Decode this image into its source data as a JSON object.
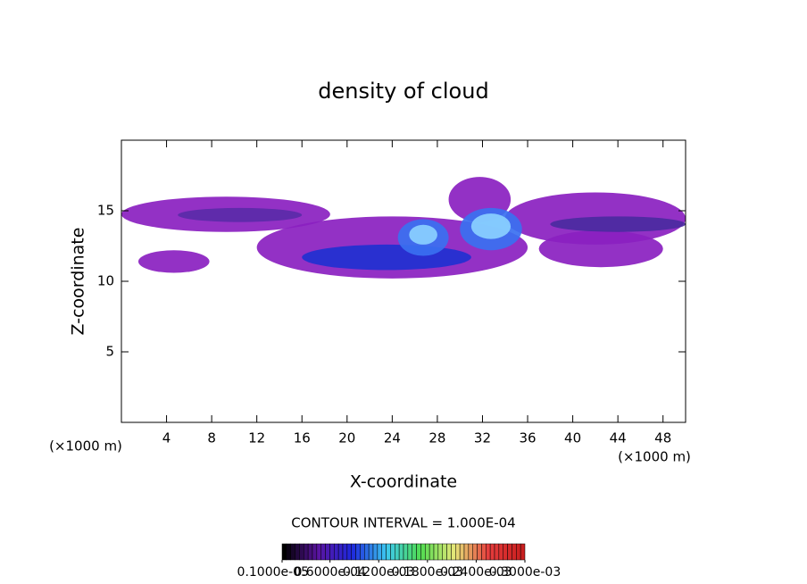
{
  "chart_data": {
    "type": "contour",
    "title": "density of cloud",
    "xlabel": "X-coordinate",
    "ylabel": "Z-coordinate",
    "xunit": "(×1000 m)",
    "yunit": "(×1000 m)",
    "xlim": [
      0,
      50
    ],
    "ylim": [
      0,
      20
    ],
    "xticks": [
      4,
      8,
      12,
      16,
      20,
      24,
      28,
      32,
      36,
      40,
      44,
      48
    ],
    "yticks": [
      5,
      10,
      15
    ],
    "annotation": "CONTOUR INTERVAL = 1.000E-04",
    "colorbar_ticks": [
      {
        "value": 1e-06,
        "label": "0.1000e-05"
      },
      {
        "value": 6e-05,
        "label": "0.6000e-04"
      },
      {
        "value": 0.00012,
        "label": "0.1200e-03"
      },
      {
        "value": 0.00018,
        "label": "0.1800e-03"
      },
      {
        "value": 0.00024,
        "label": "0.2400e-03"
      },
      {
        "value": 0.0003,
        "label": "0.3000e-03"
      }
    ],
    "regions": [
      {
        "x": [
          0,
          18.5
        ],
        "z": [
          13.5,
          16
        ],
        "color": "#8a1fc0"
      },
      {
        "x": [
          1.5,
          7.8
        ],
        "z": [
          10.6,
          12.2
        ],
        "color": "#8a1fc0"
      },
      {
        "x": [
          12,
          36
        ],
        "z": [
          10.2,
          14.6
        ],
        "color": "#8a1fc0"
      },
      {
        "x": [
          34,
          50
        ],
        "z": [
          12.6,
          16.3
        ],
        "color": "#8a1fc0"
      },
      {
        "x": [
          37,
          48
        ],
        "z": [
          11,
          13.6
        ],
        "color": "#8a1fc0"
      },
      {
        "x": [
          29,
          34.5
        ],
        "z": [
          14.2,
          17.4
        ],
        "color": "#8a1fc0"
      },
      {
        "x": [
          5,
          16
        ],
        "z": [
          14.2,
          15.2
        ],
        "color": "#5a2aa8"
      },
      {
        "x": [
          38,
          50
        ],
        "z": [
          13.5,
          14.6
        ],
        "color": "#4a2aa0"
      },
      {
        "x": [
          16,
          31
        ],
        "z": [
          10.8,
          12.6
        ],
        "color": "#2030d0"
      },
      {
        "x": [
          24.5,
          29
        ],
        "z": [
          11.8,
          14.4
        ],
        "color": "#3a70f0"
      },
      {
        "x": [
          30,
          35.5
        ],
        "z": [
          12.2,
          15.2
        ],
        "color": "#3a70f0"
      },
      {
        "x": [
          25.5,
          28
        ],
        "z": [
          12.6,
          14
        ],
        "color": "#8ad0ff"
      },
      {
        "x": [
          31,
          34.5
        ],
        "z": [
          13,
          14.8
        ],
        "color": "#8ad0ff"
      }
    ]
  }
}
